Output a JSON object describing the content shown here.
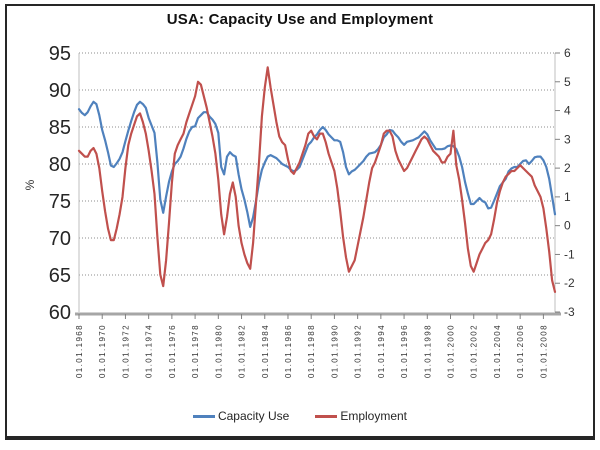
{
  "window": {
    "background": "#ffffff",
    "frame_color": "#262626"
  },
  "legend": {
    "position": "bottom-center"
  },
  "chart_data": {
    "type": "line",
    "title": "USA: Capacity Use and Employment",
    "grid": "horizontal-dotted",
    "legend_position": "bottom",
    "x_range": [
      1968,
      2009
    ],
    "x_step": 0.25,
    "left_axis": {
      "label": "%",
      "min": 60,
      "max": 95,
      "ticks": [
        60,
        65,
        70,
        75,
        80,
        85,
        90,
        95
      ]
    },
    "right_axis": {
      "min": -3,
      "max": 6,
      "ticks": [
        -3,
        -2,
        -1,
        0,
        1,
        2,
        3,
        4,
        5,
        6
      ]
    },
    "x_ticks": [
      {
        "label": "01.01.1968",
        "t": 1968
      },
      {
        "label": "01.01.1970",
        "t": 1970
      },
      {
        "label": "01.01.1972",
        "t": 1972
      },
      {
        "label": "01.01.1974",
        "t": 1974
      },
      {
        "label": "01.01.1976",
        "t": 1976
      },
      {
        "label": "01.01.1978",
        "t": 1978
      },
      {
        "label": "01.01.1980",
        "t": 1980
      },
      {
        "label": "01.01.1982",
        "t": 1982
      },
      {
        "label": "01.01.1984",
        "t": 1984
      },
      {
        "label": "01.01.1986",
        "t": 1986
      },
      {
        "label": "01.01.1988",
        "t": 1988
      },
      {
        "label": "01.01.1990",
        "t": 1990
      },
      {
        "label": "01.01.1992",
        "t": 1992
      },
      {
        "label": "01.01.1994",
        "t": 1994
      },
      {
        "label": "01.01.1996",
        "t": 1996
      },
      {
        "label": "01.01.1998",
        "t": 1998
      },
      {
        "label": "01.01.2000",
        "t": 2000
      },
      {
        "label": "01.01.2002",
        "t": 2002
      },
      {
        "label": "01.01.2004",
        "t": 2004
      },
      {
        "label": "01.01.2006",
        "t": 2006
      },
      {
        "label": "01.01.2008",
        "t": 2008
      }
    ],
    "series": [
      {
        "name": "Capacity Use",
        "axis": "left",
        "color": "#4F81BD",
        "values": [
          87.4,
          86.9,
          86.6,
          87.0,
          87.8,
          88.4,
          88.1,
          86.6,
          84.6,
          83.2,
          81.6,
          79.8,
          79.6,
          80.1,
          80.7,
          81.6,
          83.1,
          84.5,
          85.8,
          87.0,
          88.0,
          88.4,
          88.1,
          87.6,
          86.2,
          85.2,
          84.2,
          80.2,
          75.2,
          73.4,
          75.6,
          77.6,
          79.0,
          80.0,
          80.4,
          81.0,
          82.1,
          83.4,
          84.4,
          85.0,
          85.1,
          86.2,
          86.6,
          87.0,
          87.0,
          86.4,
          86.0,
          85.4,
          84.2,
          79.6,
          78.6,
          81.0,
          81.6,
          81.2,
          81.0,
          78.6,
          76.6,
          75.2,
          73.5,
          71.5,
          72.8,
          75.0,
          77.5,
          79.2,
          80.2,
          81.0,
          81.2,
          81.0,
          80.8,
          80.4,
          80.0,
          79.8,
          79.6,
          79.2,
          79.0,
          79.2,
          79.6,
          80.6,
          81.6,
          82.6,
          83.0,
          83.6,
          84.0,
          84.6,
          85.0,
          84.6,
          84.0,
          83.6,
          83.2,
          83.2,
          83.0,
          81.6,
          79.6,
          78.6,
          79.0,
          79.2,
          79.6,
          80.0,
          80.4,
          81.0,
          81.4,
          81.5,
          81.6,
          82.0,
          82.6,
          83.6,
          84.0,
          84.6,
          84.5,
          84.0,
          83.6,
          83.0,
          82.6,
          83.0,
          83.1,
          83.2,
          83.4,
          83.6,
          84.0,
          84.4,
          84.0,
          83.2,
          82.6,
          82.0,
          82.0,
          82.0,
          82.1,
          82.4,
          82.5,
          82.4,
          82.0,
          81.0,
          79.6,
          77.6,
          76.0,
          74.6,
          74.6,
          75.0,
          75.4,
          75.0,
          74.8,
          74.0,
          74.1,
          75.0,
          76.0,
          77.0,
          77.5,
          78.0,
          79.0,
          79.4,
          79.6,
          79.6,
          80.0,
          80.4,
          80.5,
          80.0,
          80.4,
          80.9,
          81.0,
          81.0,
          80.5,
          79.6,
          78.0,
          75.6,
          73.2
        ]
      },
      {
        "name": "Employment",
        "axis": "right",
        "color": "#C0504D",
        "values": [
          2.6,
          2.5,
          2.4,
          2.4,
          2.6,
          2.7,
          2.5,
          2.0,
          1.2,
          0.5,
          -0.1,
          -0.5,
          -0.5,
          -0.1,
          0.4,
          1.0,
          2.0,
          2.8,
          3.2,
          3.5,
          3.8,
          3.9,
          3.6,
          3.2,
          2.6,
          1.9,
          1.1,
          -0.4,
          -1.7,
          -2.1,
          -1.2,
          0.1,
          1.5,
          2.5,
          2.8,
          3.0,
          3.2,
          3.6,
          3.9,
          4.2,
          4.5,
          5.0,
          4.9,
          4.5,
          4.1,
          3.6,
          3.1,
          2.5,
          1.6,
          0.4,
          -0.3,
          0.3,
          1.1,
          1.5,
          1.0,
          0.0,
          -0.6,
          -1.0,
          -1.3,
          -1.5,
          -0.6,
          0.8,
          2.2,
          3.8,
          4.8,
          5.5,
          4.8,
          4.2,
          3.6,
          3.1,
          2.9,
          2.8,
          2.3,
          1.9,
          1.8,
          2.0,
          2.2,
          2.5,
          2.8,
          3.2,
          3.3,
          3.1,
          3.0,
          3.2,
          3.2,
          2.9,
          2.5,
          2.2,
          1.9,
          1.3,
          0.5,
          -0.4,
          -1.1,
          -1.6,
          -1.4,
          -1.2,
          -0.7,
          -0.2,
          0.3,
          0.9,
          1.5,
          2.0,
          2.2,
          2.5,
          2.8,
          3.2,
          3.3,
          3.3,
          3.1,
          2.6,
          2.3,
          2.1,
          1.9,
          2.0,
          2.2,
          2.4,
          2.6,
          2.8,
          3.0,
          3.1,
          3.0,
          2.8,
          2.6,
          2.5,
          2.4,
          2.2,
          2.2,
          2.4,
          2.5,
          3.3,
          2.1,
          1.6,
          0.9,
          0.1,
          -0.8,
          -1.4,
          -1.6,
          -1.3,
          -1.0,
          -0.8,
          -0.6,
          -0.5,
          -0.3,
          0.2,
          0.8,
          1.2,
          1.5,
          1.7,
          1.8,
          1.9,
          1.9,
          2.0,
          2.1,
          2.0,
          1.9,
          1.8,
          1.7,
          1.4,
          1.2,
          1.0,
          0.6,
          -0.1,
          -0.9,
          -1.9,
          -2.3
        ]
      }
    ]
  }
}
